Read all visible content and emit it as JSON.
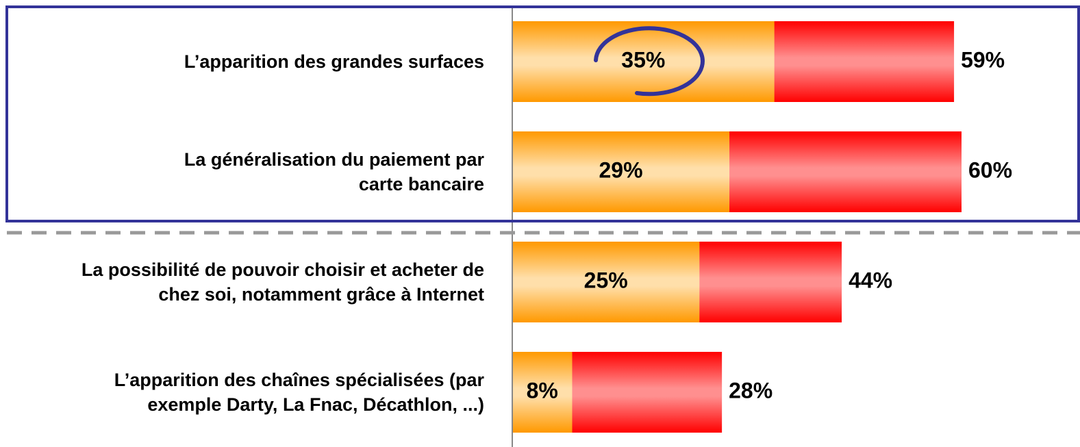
{
  "chart_data": {
    "type": "bar",
    "orientation": "horizontal",
    "categories": [
      "L’apparition des grandes surfaces",
      "La généralisation du paiement par\ncarte bancaire",
      "La possibilité de pouvoir choisir et acheter de\nchez soi, notamment grâce à Internet",
      "L’apparition des chaînes spécialisées (par\nexemple Darty, La Fnac, Décathlon,  ...)"
    ],
    "series": [
      {
        "color": "#ff9900",
        "highlight": "#ffdfaa",
        "values": [
          35,
          29,
          25,
          8
        ],
        "value_labels": [
          "35%",
          "29%",
          "25%",
          "8%"
        ]
      },
      {
        "color": "#ff0000",
        "highlight": "#ff8f8f",
        "values": [
          59,
          60,
          44,
          28
        ],
        "value_labels": [
          "59%",
          "60%",
          "44%",
          "28%"
        ]
      }
    ],
    "xlim": [
      0,
      75
    ]
  }
}
